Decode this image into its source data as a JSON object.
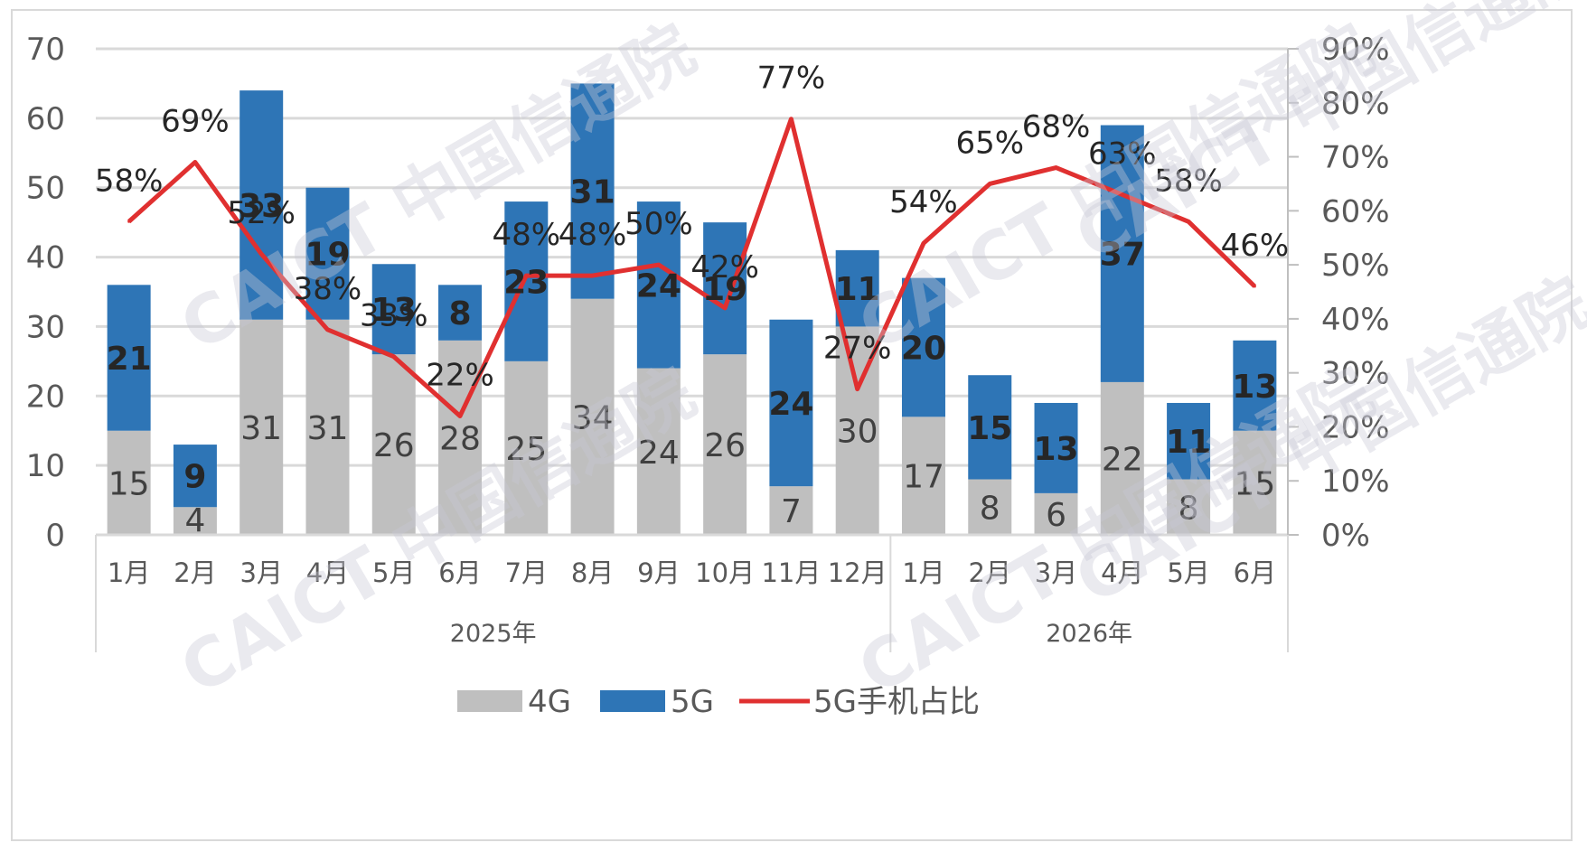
{
  "chart_data": {
    "type": "bar",
    "stacked": true,
    "categories": [
      "1月",
      "2月",
      "3月",
      "4月",
      "5月",
      "6月",
      "7月",
      "8月",
      "9月",
      "10月",
      "11月",
      "12月",
      "1月",
      "2月",
      "3月",
      "4月",
      "5月",
      "6月"
    ],
    "groups": [
      {
        "label": "2025年",
        "count": 12
      },
      {
        "label": "2026年",
        "count": 6
      }
    ],
    "series": [
      {
        "name": "4G",
        "kind": "bar",
        "axis": "left",
        "color": "#bfbfbf",
        "values": [
          15,
          4,
          31,
          31,
          26,
          28,
          25,
          34,
          24,
          26,
          7,
          30,
          17,
          8,
          6,
          22,
          8,
          15
        ]
      },
      {
        "name": "5G",
        "kind": "bar",
        "axis": "left",
        "color": "#2e75b6",
        "values": [
          21,
          9,
          33,
          19,
          13,
          8,
          23,
          31,
          24,
          19,
          24,
          11,
          20,
          15,
          13,
          37,
          11,
          13
        ]
      },
      {
        "name": "5G手机占比",
        "kind": "line",
        "axis": "right",
        "color": "#e03030",
        "values": [
          58,
          69,
          52,
          38,
          33,
          22,
          48,
          48,
          50,
          42,
          77,
          27,
          54,
          65,
          68,
          63,
          58,
          46
        ],
        "labels": [
          "58%",
          "69%",
          "52%",
          "38%",
          "33%",
          "22%",
          "48%",
          "48%",
          "50%",
          "42%",
          "77%",
          "27%",
          "54%",
          "65%",
          "68%",
          "63%",
          "58%",
          "46%"
        ]
      }
    ],
    "yleft": {
      "min": 0,
      "max": 70,
      "ticks": [
        "0",
        "10",
        "20",
        "30",
        "40",
        "50",
        "60",
        "70"
      ]
    },
    "yright": {
      "min": 0,
      "max": 90,
      "ticks": [
        "0%",
        "10%",
        "20%",
        "30%",
        "40%",
        "50%",
        "60%",
        "70%",
        "80%",
        "90%"
      ]
    },
    "grid": true,
    "legend_position": "bottom"
  },
  "watermark": {
    "text": "CAICT 中国信通院"
  }
}
